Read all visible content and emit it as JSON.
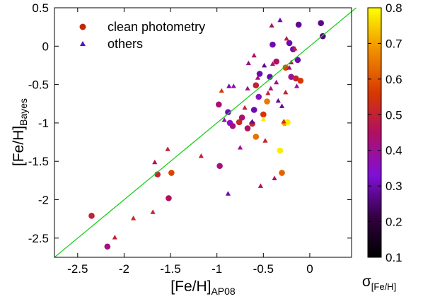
{
  "chart_data": {
    "type": "scatter",
    "xlabel": "[Fe/H]",
    "xlabel_sub": "AP08",
    "ylabel": "[Fe/H]",
    "ylabel_sub": "Bayes",
    "colorbar_label": "σ",
    "colorbar_label_sub": "[Fe/H]",
    "xlim": [
      -2.75,
      0.45
    ],
    "ylim": [
      -2.75,
      0.5
    ],
    "x_ticks": [
      "-2.5",
      "-2",
      "-1.5",
      "-1",
      "-0.5",
      "0"
    ],
    "y_ticks": [
      "0.5",
      "0",
      "-0.5",
      "-1",
      "-1.5",
      "-2",
      "-2.5"
    ],
    "colorbar_range": [
      0.1,
      0.8
    ],
    "colorbar_ticks": [
      "0.1",
      "0.2",
      "0.3",
      "0.4",
      "0.5",
      "0.6",
      "0.7",
      "0.8"
    ],
    "identity_line_color": "#22cc22",
    "legend": {
      "position": "top-left",
      "entries": [
        {
          "label": "clean photometry",
          "marker": "circle",
          "color": "#c0280a"
        },
        {
          "label": "others",
          "marker": "triangle",
          "color": "#6010c0"
        }
      ]
    },
    "series": [
      {
        "name": "clean photometry",
        "marker": "circle",
        "points": [
          {
            "x": -2.35,
            "y": -2.21,
            "s": 0.5
          },
          {
            "x": -2.18,
            "y": -2.61,
            "s": 0.42
          },
          {
            "x": -1.64,
            "y": -1.67,
            "s": 0.5
          },
          {
            "x": -1.49,
            "y": -1.65,
            "s": 0.58
          },
          {
            "x": -1.52,
            "y": -1.98,
            "s": 0.45
          },
          {
            "x": -0.98,
            "y": -0.76,
            "s": 0.43
          },
          {
            "x": -0.97,
            "y": -1.56,
            "s": 0.42
          },
          {
            "x": -0.88,
            "y": -0.86,
            "s": 0.3
          },
          {
            "x": -0.86,
            "y": -1.0,
            "s": 0.35
          },
          {
            "x": -0.83,
            "y": -1.04,
            "s": 0.42
          },
          {
            "x": -0.76,
            "y": -0.99,
            "s": 0.52
          },
          {
            "x": -0.73,
            "y": -0.93,
            "s": 0.44
          },
          {
            "x": -0.67,
            "y": -1.07,
            "s": 0.45
          },
          {
            "x": -0.62,
            "y": -1.01,
            "s": 0.5
          },
          {
            "x": -0.58,
            "y": -1.18,
            "s": 0.64
          },
          {
            "x": -0.58,
            "y": -0.51,
            "s": 0.5
          },
          {
            "x": -0.54,
            "y": -0.36,
            "s": 0.3
          },
          {
            "x": -0.5,
            "y": -0.89,
            "s": 0.55
          },
          {
            "x": -0.46,
            "y": -0.72,
            "s": 0.65
          },
          {
            "x": -0.43,
            "y": -0.4,
            "s": 0.3
          },
          {
            "x": -0.4,
            "y": 0.02,
            "s": 0.3
          },
          {
            "x": -0.36,
            "y": -0.2,
            "s": 0.45
          },
          {
            "x": -0.32,
            "y": -1.36,
            "s": 0.78
          },
          {
            "x": -0.3,
            "y": -1.65,
            "s": 0.62
          },
          {
            "x": -0.27,
            "y": -1.0,
            "s": 0.7
          },
          {
            "x": -0.24,
            "y": -0.99,
            "s": 0.78
          },
          {
            "x": -0.2,
            "y": -0.4,
            "s": 0.4
          },
          {
            "x": -0.26,
            "y": -0.28,
            "s": 0.58
          },
          {
            "x": -0.22,
            "y": 0.04,
            "s": 0.3
          },
          {
            "x": -0.18,
            "y": -0.04,
            "s": 0.3
          },
          {
            "x": -0.15,
            "y": -0.42,
            "s": 0.5
          },
          {
            "x": -0.13,
            "y": -0.18,
            "s": 0.3
          },
          {
            "x": -0.12,
            "y": 0.28,
            "s": 0.28
          },
          {
            "x": -0.1,
            "y": -0.45,
            "s": 0.56
          },
          {
            "x": 0.12,
            "y": 0.3,
            "s": 0.27
          },
          {
            "x": 0.14,
            "y": 0.13,
            "s": 0.26
          },
          {
            "x": -0.6,
            "y": -0.83,
            "s": 0.3
          },
          {
            "x": -0.55,
            "y": -0.66,
            "s": 0.35
          }
        ]
      },
      {
        "name": "others",
        "marker": "triangle",
        "points": [
          {
            "x": -2.1,
            "y": -2.49,
            "s": 0.5
          },
          {
            "x": -1.9,
            "y": -2.24,
            "s": 0.52
          },
          {
            "x": -1.69,
            "y": -2.16,
            "s": 0.5
          },
          {
            "x": -1.67,
            "y": -1.51,
            "s": 0.45
          },
          {
            "x": -1.53,
            "y": -1.34,
            "s": 0.5
          },
          {
            "x": -0.95,
            "y": -0.58,
            "s": 0.55
          },
          {
            "x": -0.92,
            "y": -0.96,
            "s": 0.38
          },
          {
            "x": -0.87,
            "y": -0.52,
            "s": 0.3
          },
          {
            "x": -0.82,
            "y": -0.52,
            "s": 0.4
          },
          {
            "x": -0.75,
            "y": -1.32,
            "s": 0.4
          },
          {
            "x": -0.88,
            "y": -1.92,
            "s": 0.3
          },
          {
            "x": -0.7,
            "y": -0.8,
            "s": 0.5
          },
          {
            "x": -0.67,
            "y": -0.55,
            "s": 0.4
          },
          {
            "x": -0.62,
            "y": -0.98,
            "s": 0.28
          },
          {
            "x": -0.56,
            "y": -0.41,
            "s": 0.42
          },
          {
            "x": -0.53,
            "y": -1.82,
            "s": 0.45
          },
          {
            "x": -0.48,
            "y": -1.23,
            "s": 0.5
          },
          {
            "x": -0.45,
            "y": -0.61,
            "s": 0.5
          },
          {
            "x": -0.42,
            "y": -0.55,
            "s": 0.42
          },
          {
            "x": -0.4,
            "y": -0.23,
            "s": 0.45
          },
          {
            "x": -0.36,
            "y": -0.47,
            "s": 0.4
          },
          {
            "x": -0.34,
            "y": -0.71,
            "s": 0.28
          },
          {
            "x": -0.32,
            "y": 0.34,
            "s": 0.3
          },
          {
            "x": -0.3,
            "y": -0.78,
            "s": 0.28
          },
          {
            "x": -0.38,
            "y": -1.72,
            "s": 0.45
          },
          {
            "x": -0.28,
            "y": -0.98,
            "s": 0.55
          },
          {
            "x": -0.25,
            "y": 0.1,
            "s": 0.48
          },
          {
            "x": -0.22,
            "y": -0.28,
            "s": 0.42
          },
          {
            "x": -0.2,
            "y": -0.21,
            "s": 0.48
          },
          {
            "x": -0.16,
            "y": -0.03,
            "s": 0.5
          },
          {
            "x": -0.14,
            "y": -0.52,
            "s": 0.38
          },
          {
            "x": -0.5,
            "y": -0.95,
            "s": 0.78
          },
          {
            "x": -0.41,
            "y": 0.27,
            "s": 0.45
          },
          {
            "x": -1.17,
            "y": -1.43,
            "s": 0.5
          },
          {
            "x": -0.66,
            "y": -0.22,
            "s": 0.4
          },
          {
            "x": -0.6,
            "y": -0.12,
            "s": 0.45
          },
          {
            "x": -0.26,
            "y": -0.6,
            "s": 0.5
          },
          {
            "x": -0.49,
            "y": -0.25,
            "s": 0.28
          }
        ]
      }
    ]
  }
}
